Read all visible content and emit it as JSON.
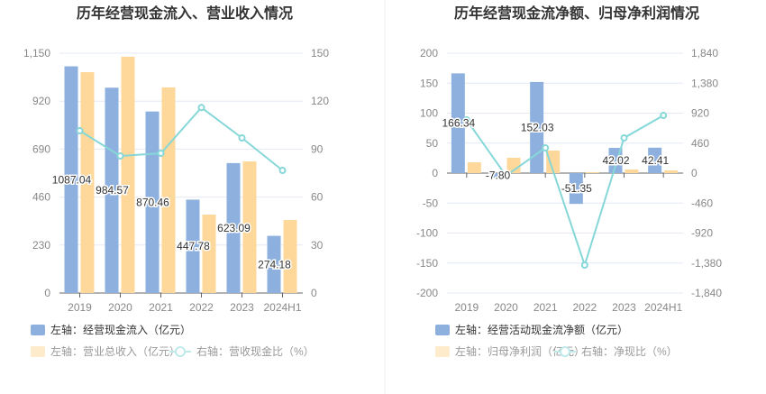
{
  "colors": {
    "inflow": "#8eb0de",
    "revenue": "#fdd89a",
    "line": "#86d7d8",
    "grid": "#e3e8f3"
  },
  "chart_data": [
    {
      "type": "bar",
      "title": "历年经营现金流入、营业收入情况",
      "categories": [
        "2019",
        "2020",
        "2021",
        "2022",
        "2023",
        "2024H1"
      ],
      "left_axis": {
        "min": 0,
        "max": 1150,
        "ticks": [
          "0",
          "230",
          "460",
          "690",
          "920",
          "1,150"
        ]
      },
      "right_axis": {
        "min": 0,
        "max": 150,
        "ticks": [
          "0",
          "30",
          "60",
          "90",
          "120",
          "150"
        ]
      },
      "series": [
        {
          "name": "左轴：经营现金流入（亿元）",
          "kind": "bar",
          "axis": "left",
          "values": [
            1087.04,
            984.57,
            870.46,
            447.78,
            623.09,
            274.18
          ],
          "labels": [
            "1087.04",
            "984.57",
            "870.46",
            "447.78",
            "623.09",
            "274.18"
          ]
        },
        {
          "name": "左轴：营业总收入（亿元）",
          "kind": "bar",
          "axis": "left",
          "values": [
            1059,
            1133,
            986,
            376,
            631,
            350
          ]
        },
        {
          "name": "右轴：营收现金比（%）",
          "kind": "line",
          "axis": "right",
          "values": [
            101.5,
            85.7,
            87.4,
            116,
            97,
            76.7
          ]
        }
      ]
    },
    {
      "type": "bar",
      "title": "历年经营现金流净额、归母净利润情况",
      "categories": [
        "2019",
        "2020",
        "2021",
        "2022",
        "2023",
        "2024H1"
      ],
      "left_axis": {
        "min": -200,
        "max": 200,
        "ticks": [
          "-200",
          "-150",
          "-100",
          "-50",
          "0",
          "50",
          "100",
          "150",
          "200"
        ]
      },
      "right_axis": {
        "min": -1840,
        "max": 1840,
        "ticks": [
          "-1,840",
          "-1,380",
          "-920",
          "-460",
          "0",
          "460",
          "920",
          "1,380",
          "1,840"
        ]
      },
      "series": [
        {
          "name": "左轴：经营活动现金流净额（亿元）",
          "kind": "bar",
          "axis": "left",
          "values": [
            166.34,
            -7.8,
            152.03,
            -51.35,
            42.02,
            42.41
          ],
          "labels": [
            "166.34",
            "-7.80",
            "152.03",
            "-51.35",
            "42.02",
            "42.41"
          ]
        },
        {
          "name": "左轴：归母净利润（亿元）",
          "kind": "bar",
          "axis": "left",
          "values": [
            18,
            25.6,
            37.6,
            1.5,
            6,
            4.5
          ]
        },
        {
          "name": "右轴：净现比（%）",
          "kind": "line",
          "axis": "right",
          "values": [
            816,
            -40,
            387,
            -1411,
            540,
            885
          ]
        }
      ]
    }
  ]
}
